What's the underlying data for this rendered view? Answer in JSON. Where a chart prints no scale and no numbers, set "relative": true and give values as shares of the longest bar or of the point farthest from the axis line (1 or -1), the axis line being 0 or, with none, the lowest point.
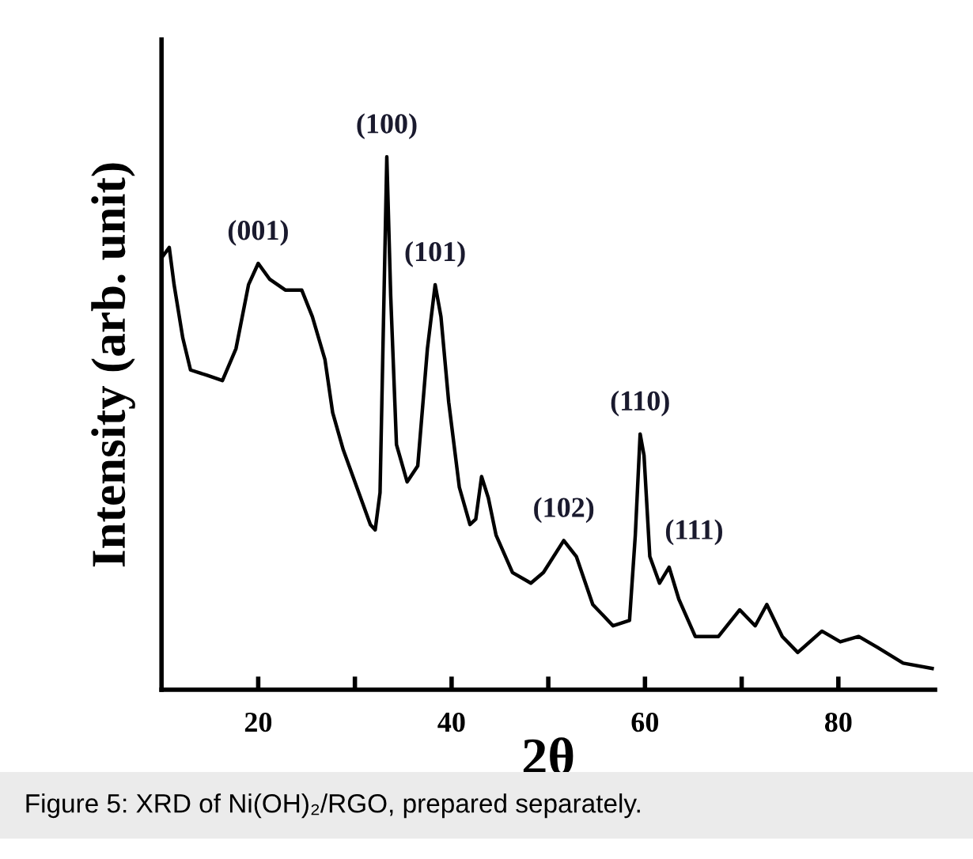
{
  "chart_data": {
    "type": "line",
    "relative": true,
    "xlabel": "2θ",
    "ylabel": "Intensity (arb. unit)",
    "xlim": [
      10,
      90
    ],
    "xticks": [
      20,
      {
        "value": 30,
        "label": null
      },
      40,
      {
        "value": 50,
        "label": null
      },
      60,
      {
        "value": 70,
        "label": null
      },
      80
    ],
    "grid": false,
    "legend": false,
    "marker": "none",
    "line_style": "solid",
    "series": [
      {
        "color": "#000000",
        "x": [
          10.0,
          10.8,
          11.3,
          12.2,
          13.0,
          14.7,
          16.3,
          17.7,
          19.0,
          20.0,
          21.2,
          22.8,
          24.5,
          25.6,
          26.9,
          27.7,
          28.8,
          30.2,
          31.6,
          32.1,
          32.6,
          33.3,
          33.7,
          34.3,
          35.4,
          36.5,
          37.5,
          38.3,
          38.9,
          39.7,
          40.8,
          41.9,
          42.5,
          43.1,
          43.8,
          44.6,
          46.3,
          48.2,
          49.5,
          51.6,
          52.9,
          54.6,
          56.7,
          58.4,
          59.0,
          59.5,
          59.9,
          60.5,
          61.5,
          62.5,
          63.5,
          65.2,
          67.6,
          69.8,
          71.4,
          72.6,
          74.2,
          75.8,
          78.3,
          80.2,
          82.1,
          84.0,
          86.7,
          89.7
        ],
        "values": [
          0.81,
          0.83,
          0.76,
          0.66,
          0.6,
          0.59,
          0.58,
          0.64,
          0.76,
          0.8,
          0.77,
          0.75,
          0.75,
          0.7,
          0.62,
          0.52,
          0.45,
          0.38,
          0.31,
          0.3,
          0.37,
          1.0,
          0.74,
          0.46,
          0.39,
          0.42,
          0.64,
          0.76,
          0.7,
          0.54,
          0.38,
          0.31,
          0.32,
          0.4,
          0.36,
          0.29,
          0.22,
          0.2,
          0.22,
          0.28,
          0.25,
          0.16,
          0.12,
          0.13,
          0.29,
          0.48,
          0.44,
          0.25,
          0.2,
          0.23,
          0.17,
          0.1,
          0.1,
          0.15,
          0.12,
          0.16,
          0.1,
          0.07,
          0.11,
          0.09,
          0.1,
          0.08,
          0.05,
          0.04
        ]
      }
    ],
    "annotations": [
      {
        "text": "(001)",
        "x": 20.0,
        "y": 0.8
      },
      {
        "text": "(100)",
        "x": 33.3,
        "y": 1.0
      },
      {
        "text": "(101)",
        "x": 38.3,
        "y": 0.76
      },
      {
        "text": "(102)",
        "x": 51.6,
        "y": 0.28
      },
      {
        "text": "(110)",
        "x": 59.5,
        "y": 0.48
      },
      {
        "text": "(111)",
        "x": 62.5,
        "y": 0.23
      },
      "Figure 5: XRD of Ni(OH)₂/RGO, prepared separately."
    ]
  }
}
